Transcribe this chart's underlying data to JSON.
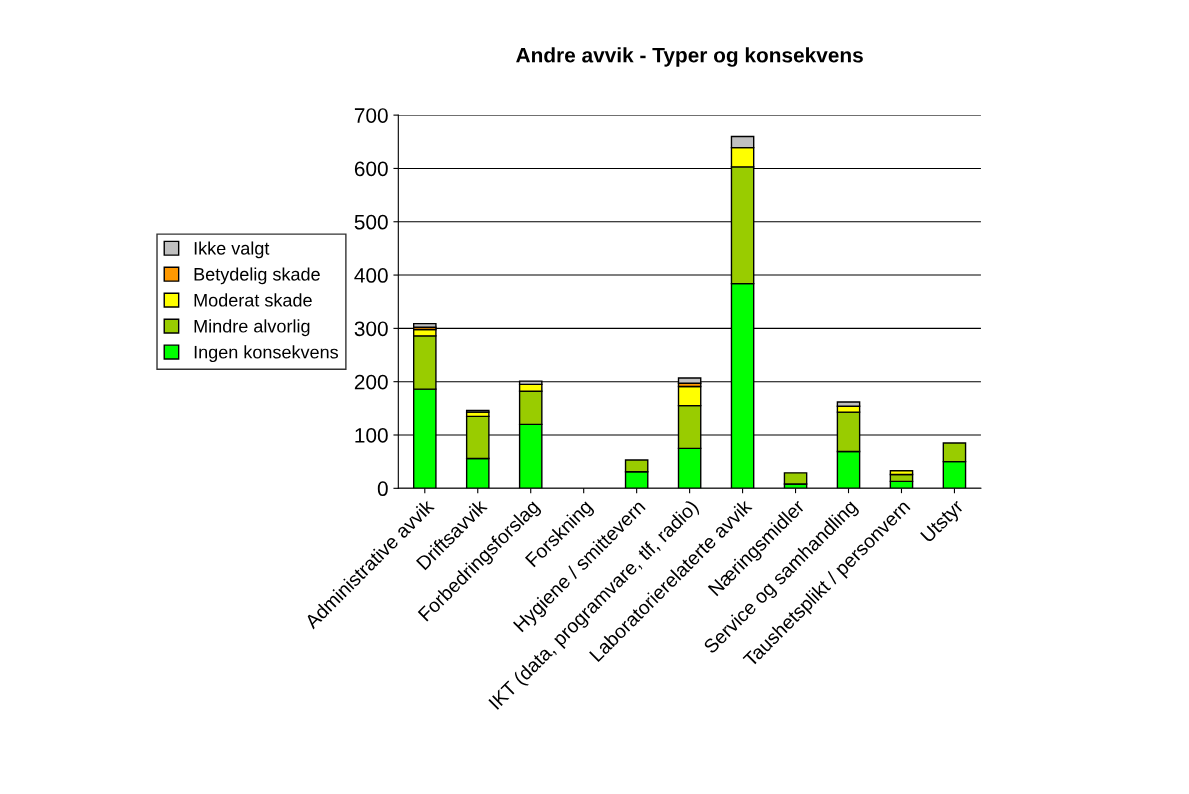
{
  "chart_data": {
    "type": "bar",
    "title": "Andre avvik - Typer og konsekvens",
    "stacked": true,
    "legend": "left",
    "grid": "y",
    "categories": [
      "Administrative avvik",
      "Driftsavvik",
      "Forbedringsforslag",
      "Forskning",
      "Hygiene / smittevern",
      "IKT (data, programvare, tlf, radio)",
      "Laboratorierelaterte avvik",
      "Næringsmidler",
      "Service og samhandling",
      "Taushetsplikt / personvern",
      "Utstyr"
    ],
    "ylim": [
      0,
      700
    ],
    "yticks": [
      0,
      100,
      200,
      300,
      400,
      500,
      600,
      700
    ],
    "series": [
      {
        "name": "Ingen konsekvens",
        "color": "#00ff00",
        "values": [
          186,
          56,
          120,
          0,
          31,
          75,
          384,
          8,
          69,
          13,
          50
        ]
      },
      {
        "name": "Mindre alvorlig",
        "color": "#99cc00",
        "values": [
          100,
          79,
          62,
          0,
          22,
          80,
          219,
          21,
          74,
          13,
          35
        ]
      },
      {
        "name": "Moderat skade",
        "color": "#ffff00",
        "values": [
          12,
          8,
          13,
          0,
          0,
          36,
          36,
          0,
          11,
          7,
          0
        ]
      },
      {
        "name": "Betydelig skade",
        "color": "#ff9900",
        "values": [
          4,
          0,
          0,
          0,
          0,
          6,
          0,
          0,
          0,
          0,
          0
        ]
      },
      {
        "name": "Ikke valgt",
        "color": "#c0c0c0",
        "values": [
          7,
          3,
          6,
          0,
          0,
          10,
          21,
          0,
          8,
          0,
          0
        ]
      }
    ]
  }
}
